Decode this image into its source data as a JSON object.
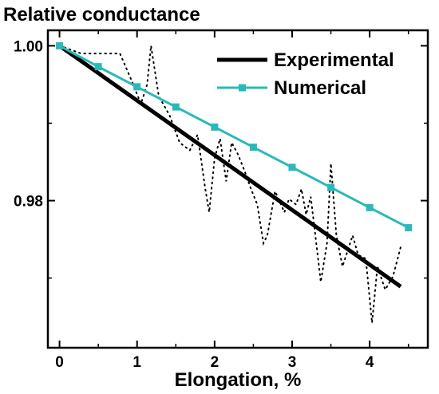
{
  "chart_data": {
    "type": "line",
    "title": "Relative conductance",
    "xlabel": "Elongation, %",
    "ylabel": "",
    "xlim": [
      -0.15,
      4.75
    ],
    "ylim": [
      0.961,
      1.002
    ],
    "x_ticks": [
      "0",
      "1",
      "2",
      "3",
      "4"
    ],
    "y_ticks": [
      "0.98",
      "1.00"
    ],
    "legend": {
      "placement": "top-right",
      "entries": [
        "Experimental",
        "Numerical"
      ]
    },
    "series": [
      {
        "name": "Experimental",
        "style": "solid-thick",
        "color": "#000000",
        "x": [
          0,
          4.4
        ],
        "y": [
          1.0,
          0.9689
        ]
      },
      {
        "name": "Numerical",
        "style": "line-square-markers",
        "color": "#2ab9b9",
        "x": [
          0,
          0.5,
          1.0,
          1.5,
          2.0,
          2.5,
          3.0,
          3.5,
          4.0,
          4.5
        ],
        "y": [
          1.0,
          0.9973,
          0.9947,
          0.9921,
          0.9895,
          0.9869,
          0.9843,
          0.9817,
          0.9791,
          0.9765
        ]
      },
      {
        "name": "",
        "style": "dotted",
        "color": "#000000",
        "x": [
          0,
          0.28,
          0.55,
          0.78,
          0.93,
          1.05,
          1.13,
          1.18,
          1.28,
          1.42,
          1.55,
          1.68,
          1.78,
          1.88,
          1.93,
          2.0,
          2.07,
          2.15,
          2.22,
          2.3,
          2.38,
          2.47,
          2.55,
          2.63,
          2.68,
          2.78,
          2.9,
          2.96,
          3.05,
          3.12,
          3.18,
          3.24,
          3.3,
          3.37,
          3.45,
          3.5,
          3.57,
          3.65,
          3.78,
          3.85,
          3.95,
          4.03,
          4.1,
          4.2,
          4.3,
          4.4
        ],
        "y": [
          1.0,
          0.999,
          0.999,
          0.999,
          0.9955,
          0.9925,
          0.995,
          1.0,
          0.9935,
          0.991,
          0.9875,
          0.9865,
          0.9885,
          0.9815,
          0.9785,
          0.9855,
          0.988,
          0.9825,
          0.9875,
          0.986,
          0.984,
          0.9815,
          0.9795,
          0.9745,
          0.9755,
          0.9812,
          0.9785,
          0.9802,
          0.9795,
          0.9815,
          0.9782,
          0.9805,
          0.9755,
          0.9695,
          0.9745,
          0.9848,
          0.9755,
          0.9715,
          0.9755,
          0.973,
          0.9725,
          0.9642,
          0.9715,
          0.9685,
          0.9702,
          0.974
        ]
      }
    ]
  }
}
